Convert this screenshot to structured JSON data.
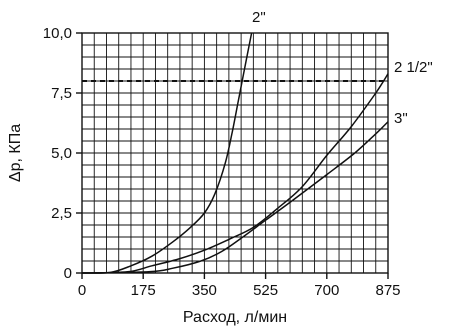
{
  "chart_data": {
    "type": "line",
    "title": "",
    "xlabel": "Расход, л/мин",
    "ylabel": "Δp, КПа",
    "xlim": [
      0,
      875
    ],
    "ylim": [
      0,
      10
    ],
    "x_ticks": [
      0,
      175,
      350,
      525,
      700,
      875
    ],
    "x_tick_labels": [
      "0",
      "175",
      "350",
      "525",
      "700",
      "875"
    ],
    "y_ticks": [
      0,
      2.5,
      5,
      7.5,
      10
    ],
    "y_tick_labels": [
      "0",
      "2,5",
      "5,0",
      "7,5",
      "10,0"
    ],
    "grid": true,
    "grid_minor_x_step": 35,
    "grid_minor_y_step": 0.5,
    "reference_line": {
      "y": 8,
      "style": "dashed"
    },
    "series": [
      {
        "name": "2\"",
        "points": [
          [
            0,
            0
          ],
          [
            80,
            0.02
          ],
          [
            140,
            0.3
          ],
          [
            200,
            0.7
          ],
          [
            260,
            1.3
          ],
          [
            310,
            1.9
          ],
          [
            350,
            2.5
          ],
          [
            380,
            3.3
          ],
          [
            410,
            4.6
          ],
          [
            430,
            5.9
          ],
          [
            450,
            7.4
          ],
          [
            470,
            8.9
          ],
          [
            485,
            10.0
          ]
        ]
      },
      {
        "name": "2 1/2\"",
        "points": [
          [
            0,
            0
          ],
          [
            130,
            0.05
          ],
          [
            200,
            0.3
          ],
          [
            280,
            0.6
          ],
          [
            350,
            0.95
          ],
          [
            420,
            1.4
          ],
          [
            490,
            1.9
          ],
          [
            560,
            2.7
          ],
          [
            630,
            3.6
          ],
          [
            700,
            4.9
          ],
          [
            770,
            6.1
          ],
          [
            840,
            7.5
          ],
          [
            875,
            8.3
          ]
        ]
      },
      {
        "name": "3\"",
        "points": [
          [
            0,
            0
          ],
          [
            190,
            0.05
          ],
          [
            260,
            0.2
          ],
          [
            340,
            0.5
          ],
          [
            400,
            0.9
          ],
          [
            460,
            1.5
          ],
          [
            525,
            2.2
          ],
          [
            600,
            3.0
          ],
          [
            700,
            4.1
          ],
          [
            780,
            5.0
          ],
          [
            840,
            5.8
          ],
          [
            875,
            6.3
          ]
        ]
      }
    ],
    "annotations": [
      "2\"",
      "2 1/2\"",
      "3\""
    ]
  }
}
